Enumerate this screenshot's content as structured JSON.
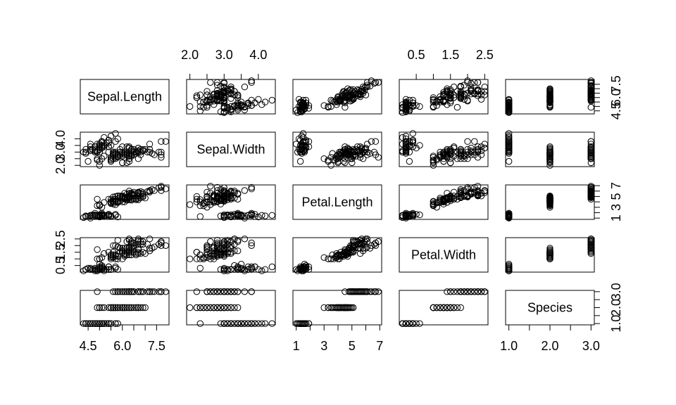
{
  "chart_data": {
    "type": "scatter",
    "variables": [
      "Sepal.Length",
      "Sepal.Width",
      "Petal.Length",
      "Petal.Width",
      "Species"
    ],
    "ranges": {
      "Sepal.Length": [
        4.3,
        7.9
      ],
      "Sepal.Width": [
        2.0,
        4.4
      ],
      "Petal.Length": [
        1.0,
        6.9
      ],
      "Petal.Width": [
        0.1,
        2.5
      ],
      "Species": [
        1.0,
        3.0
      ]
    },
    "ticks": {
      "Sepal.Length": {
        "values": [
          4.5,
          5.0,
          5.5,
          6.0,
          6.5,
          7.0,
          7.5
        ],
        "labels": [
          "4.5",
          "",
          "",
          "6.0",
          "",
          "",
          "7.5"
        ]
      },
      "Sepal.Width": {
        "values": [
          2.0,
          2.5,
          3.0,
          3.5,
          4.0
        ],
        "labels": [
          "2.0",
          "",
          "3.0",
          "",
          "4.0"
        ]
      },
      "Petal.Length": {
        "values": [
          1,
          2,
          3,
          4,
          5,
          6,
          7
        ],
        "labels": [
          "1",
          "",
          "3",
          "",
          "5",
          "",
          "7"
        ]
      },
      "Petal.Width": {
        "values": [
          0.5,
          1.0,
          1.5,
          2.0,
          2.5
        ],
        "labels": [
          "0.5",
          "",
          "1.5",
          "",
          "2.5"
        ]
      },
      "Species": {
        "values": [
          1.0,
          1.5,
          2.0,
          2.5,
          3.0
        ],
        "labels": [
          "1.0",
          "",
          "2.0",
          "",
          "3.0"
        ]
      }
    },
    "axis_labels": {
      "bottom": [
        "4.5",
        "6.0",
        "7.5",
        "1",
        "3",
        "5",
        "7",
        "1.0",
        "2.0",
        "3.0"
      ],
      "top": [
        "2.0",
        "3.0",
        "4.0",
        "0.5",
        "1.5",
        "2.5"
      ],
      "left": [
        "2.0",
        "0.5"
      ],
      "right": [
        "4.5",
        "1",
        "5",
        "1.0"
      ]
    },
    "grid": false,
    "observations": [
      [
        5.1,
        3.5,
        1.4,
        0.2,
        1
      ],
      [
        4.9,
        3.0,
        1.4,
        0.2,
        1
      ],
      [
        4.7,
        3.2,
        1.3,
        0.2,
        1
      ],
      [
        4.6,
        3.1,
        1.5,
        0.2,
        1
      ],
      [
        5.0,
        3.6,
        1.4,
        0.2,
        1
      ],
      [
        5.4,
        3.9,
        1.7,
        0.4,
        1
      ],
      [
        4.6,
        3.4,
        1.4,
        0.3,
        1
      ],
      [
        5.0,
        3.4,
        1.5,
        0.2,
        1
      ],
      [
        4.4,
        2.9,
        1.4,
        0.2,
        1
      ],
      [
        4.9,
        3.1,
        1.5,
        0.1,
        1
      ],
      [
        5.4,
        3.7,
        1.5,
        0.2,
        1
      ],
      [
        4.8,
        3.4,
        1.6,
        0.2,
        1
      ],
      [
        4.8,
        3.0,
        1.4,
        0.1,
        1
      ],
      [
        4.3,
        3.0,
        1.1,
        0.1,
        1
      ],
      [
        5.8,
        4.0,
        1.2,
        0.2,
        1
      ],
      [
        5.7,
        4.4,
        1.5,
        0.4,
        1
      ],
      [
        5.4,
        3.9,
        1.3,
        0.4,
        1
      ],
      [
        5.1,
        3.5,
        1.4,
        0.3,
        1
      ],
      [
        5.7,
        3.8,
        1.7,
        0.3,
        1
      ],
      [
        5.1,
        3.8,
        1.5,
        0.3,
        1
      ],
      [
        5.4,
        3.4,
        1.7,
        0.2,
        1
      ],
      [
        5.1,
        3.7,
        1.5,
        0.4,
        1
      ],
      [
        4.6,
        3.6,
        1.0,
        0.2,
        1
      ],
      [
        5.1,
        3.3,
        1.7,
        0.5,
        1
      ],
      [
        4.8,
        3.4,
        1.9,
        0.2,
        1
      ],
      [
        5.0,
        3.0,
        1.6,
        0.2,
        1
      ],
      [
        5.0,
        3.4,
        1.6,
        0.4,
        1
      ],
      [
        5.2,
        3.5,
        1.5,
        0.2,
        1
      ],
      [
        5.2,
        3.4,
        1.4,
        0.2,
        1
      ],
      [
        4.7,
        3.2,
        1.6,
        0.2,
        1
      ],
      [
        4.8,
        3.1,
        1.6,
        0.2,
        1
      ],
      [
        5.4,
        3.4,
        1.5,
        0.4,
        1
      ],
      [
        5.2,
        4.1,
        1.5,
        0.1,
        1
      ],
      [
        5.5,
        4.2,
        1.4,
        0.2,
        1
      ],
      [
        4.9,
        3.1,
        1.5,
        0.2,
        1
      ],
      [
        5.0,
        3.2,
        1.2,
        0.2,
        1
      ],
      [
        5.5,
        3.5,
        1.3,
        0.2,
        1
      ],
      [
        4.9,
        3.6,
        1.4,
        0.1,
        1
      ],
      [
        4.4,
        3.0,
        1.3,
        0.2,
        1
      ],
      [
        5.1,
        3.4,
        1.5,
        0.2,
        1
      ],
      [
        5.0,
        3.5,
        1.3,
        0.3,
        1
      ],
      [
        4.5,
        2.3,
        1.3,
        0.3,
        1
      ],
      [
        4.4,
        3.2,
        1.3,
        0.2,
        1
      ],
      [
        5.0,
        3.5,
        1.6,
        0.6,
        1
      ],
      [
        5.1,
        3.8,
        1.9,
        0.4,
        1
      ],
      [
        4.8,
        3.0,
        1.4,
        0.3,
        1
      ],
      [
        5.1,
        3.8,
        1.6,
        0.2,
        1
      ],
      [
        4.6,
        3.2,
        1.4,
        0.2,
        1
      ],
      [
        5.3,
        3.7,
        1.5,
        0.2,
        1
      ],
      [
        5.0,
        3.3,
        1.4,
        0.2,
        1
      ],
      [
        7.0,
        3.2,
        4.7,
        1.4,
        2
      ],
      [
        6.4,
        3.2,
        4.5,
        1.5,
        2
      ],
      [
        6.9,
        3.1,
        4.9,
        1.5,
        2
      ],
      [
        5.5,
        2.3,
        4.0,
        1.3,
        2
      ],
      [
        6.5,
        2.8,
        4.6,
        1.5,
        2
      ],
      [
        5.7,
        2.8,
        4.5,
        1.3,
        2
      ],
      [
        6.3,
        3.3,
        4.7,
        1.6,
        2
      ],
      [
        4.9,
        2.4,
        3.3,
        1.0,
        2
      ],
      [
        6.6,
        2.9,
        4.6,
        1.3,
        2
      ],
      [
        5.2,
        2.7,
        3.9,
        1.4,
        2
      ],
      [
        5.0,
        2.0,
        3.5,
        1.0,
        2
      ],
      [
        5.9,
        3.0,
        4.2,
        1.5,
        2
      ],
      [
        6.0,
        2.2,
        4.0,
        1.0,
        2
      ],
      [
        6.1,
        2.9,
        4.7,
        1.4,
        2
      ],
      [
        5.6,
        2.9,
        3.6,
        1.3,
        2
      ],
      [
        6.7,
        3.1,
        4.4,
        1.4,
        2
      ],
      [
        5.6,
        3.0,
        4.5,
        1.5,
        2
      ],
      [
        5.8,
        2.7,
        4.1,
        1.0,
        2
      ],
      [
        6.2,
        2.2,
        4.5,
        1.5,
        2
      ],
      [
        5.6,
        2.5,
        3.9,
        1.1,
        2
      ],
      [
        5.9,
        3.2,
        4.8,
        1.8,
        2
      ],
      [
        6.1,
        2.8,
        4.0,
        1.3,
        2
      ],
      [
        6.3,
        2.5,
        4.9,
        1.5,
        2
      ],
      [
        6.1,
        2.8,
        4.7,
        1.2,
        2
      ],
      [
        6.4,
        2.9,
        4.3,
        1.3,
        2
      ],
      [
        6.6,
        3.0,
        4.4,
        1.4,
        2
      ],
      [
        6.8,
        2.8,
        4.8,
        1.4,
        2
      ],
      [
        6.7,
        3.0,
        5.0,
        1.7,
        2
      ],
      [
        6.0,
        2.9,
        4.5,
        1.5,
        2
      ],
      [
        5.7,
        2.6,
        3.5,
        1.0,
        2
      ],
      [
        5.5,
        2.4,
        3.8,
        1.1,
        2
      ],
      [
        5.5,
        2.4,
        3.7,
        1.0,
        2
      ],
      [
        5.8,
        2.7,
        3.9,
        1.2,
        2
      ],
      [
        6.0,
        2.7,
        5.1,
        1.6,
        2
      ],
      [
        5.4,
        3.0,
        4.5,
        1.5,
        2
      ],
      [
        6.0,
        3.4,
        4.5,
        1.6,
        2
      ],
      [
        6.7,
        3.1,
        4.7,
        1.5,
        2
      ],
      [
        6.3,
        2.3,
        4.4,
        1.3,
        2
      ],
      [
        5.6,
        3.0,
        4.1,
        1.3,
        2
      ],
      [
        5.5,
        2.5,
        4.0,
        1.3,
        2
      ],
      [
        5.5,
        2.6,
        4.4,
        1.2,
        2
      ],
      [
        6.1,
        3.0,
        4.6,
        1.4,
        2
      ],
      [
        5.8,
        2.6,
        4.0,
        1.2,
        2
      ],
      [
        5.0,
        2.3,
        3.3,
        1.0,
        2
      ],
      [
        5.6,
        2.7,
        4.2,
        1.3,
        2
      ],
      [
        5.7,
        3.0,
        4.2,
        1.2,
        2
      ],
      [
        5.7,
        2.9,
        4.2,
        1.3,
        2
      ],
      [
        6.2,
        2.9,
        4.3,
        1.3,
        2
      ],
      [
        5.1,
        2.5,
        3.0,
        1.1,
        2
      ],
      [
        5.7,
        2.8,
        4.1,
        1.3,
        2
      ],
      [
        6.3,
        3.3,
        6.0,
        2.5,
        3
      ],
      [
        5.8,
        2.7,
        5.1,
        1.9,
        3
      ],
      [
        7.1,
        3.0,
        5.9,
        2.1,
        3
      ],
      [
        6.3,
        2.9,
        5.6,
        1.8,
        3
      ],
      [
        6.5,
        3.0,
        5.8,
        2.2,
        3
      ],
      [
        7.6,
        3.0,
        6.6,
        2.1,
        3
      ],
      [
        4.9,
        2.5,
        4.5,
        1.7,
        3
      ],
      [
        7.3,
        2.9,
        6.3,
        1.8,
        3
      ],
      [
        6.7,
        2.5,
        5.8,
        1.8,
        3
      ],
      [
        7.2,
        3.6,
        6.1,
        2.5,
        3
      ],
      [
        6.5,
        3.2,
        5.1,
        2.0,
        3
      ],
      [
        6.4,
        2.7,
        5.3,
        1.9,
        3
      ],
      [
        6.8,
        3.0,
        5.5,
        2.1,
        3
      ],
      [
        5.7,
        2.5,
        5.0,
        2.0,
        3
      ],
      [
        5.8,
        2.8,
        5.1,
        2.4,
        3
      ],
      [
        6.4,
        3.2,
        5.3,
        2.3,
        3
      ],
      [
        6.5,
        3.0,
        5.5,
        1.8,
        3
      ],
      [
        7.7,
        3.8,
        6.7,
        2.2,
        3
      ],
      [
        7.7,
        2.6,
        6.9,
        2.3,
        3
      ],
      [
        6.0,
        2.2,
        5.0,
        1.5,
        3
      ],
      [
        6.9,
        3.2,
        5.7,
        2.3,
        3
      ],
      [
        5.6,
        2.8,
        4.9,
        2.0,
        3
      ],
      [
        7.7,
        2.8,
        6.7,
        2.0,
        3
      ],
      [
        6.3,
        2.7,
        4.9,
        1.8,
        3
      ],
      [
        6.7,
        3.3,
        5.7,
        2.1,
        3
      ],
      [
        7.2,
        3.2,
        6.0,
        1.8,
        3
      ],
      [
        6.2,
        2.8,
        4.8,
        1.8,
        3
      ],
      [
        6.1,
        3.0,
        4.9,
        1.8,
        3
      ],
      [
        6.4,
        2.8,
        5.6,
        2.1,
        3
      ],
      [
        7.2,
        3.0,
        5.8,
        1.6,
        3
      ],
      [
        7.4,
        2.8,
        6.1,
        1.9,
        3
      ],
      [
        7.9,
        3.8,
        6.4,
        2.0,
        3
      ],
      [
        6.4,
        2.8,
        5.6,
        2.2,
        3
      ],
      [
        6.3,
        2.8,
        5.1,
        1.5,
        3
      ],
      [
        6.1,
        2.6,
        5.6,
        1.4,
        3
      ],
      [
        7.7,
        3.0,
        6.1,
        2.3,
        3
      ],
      [
        6.3,
        3.4,
        5.6,
        2.4,
        3
      ],
      [
        6.4,
        3.1,
        5.5,
        1.8,
        3
      ],
      [
        6.0,
        3.0,
        4.8,
        1.8,
        3
      ],
      [
        6.9,
        3.1,
        5.4,
        2.1,
        3
      ],
      [
        6.7,
        3.1,
        5.6,
        2.4,
        3
      ],
      [
        6.9,
        3.1,
        5.1,
        2.3,
        3
      ],
      [
        5.8,
        2.7,
        5.1,
        1.9,
        3
      ],
      [
        6.8,
        3.2,
        5.9,
        2.3,
        3
      ],
      [
        6.7,
        3.3,
        5.7,
        2.5,
        3
      ],
      [
        6.7,
        3.0,
        5.2,
        2.3,
        3
      ],
      [
        6.3,
        2.5,
        5.0,
        1.9,
        3
      ],
      [
        6.5,
        3.0,
        5.2,
        2.0,
        3
      ],
      [
        6.2,
        3.4,
        5.4,
        2.3,
        3
      ],
      [
        5.9,
        3.0,
        5.1,
        1.8,
        3
      ]
    ]
  }
}
